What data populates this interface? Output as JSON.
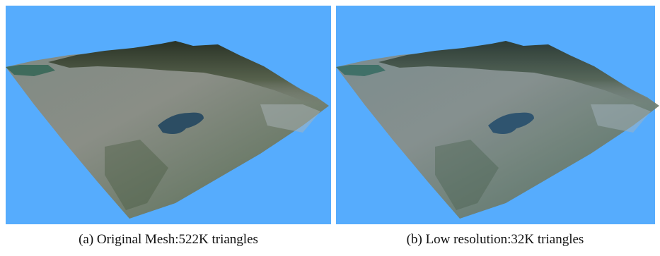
{
  "figures": [
    {
      "caption": "(a) Original Mesh:522K triangles"
    },
    {
      "caption": "(b) Low resolution:32K triangles"
    }
  ]
}
